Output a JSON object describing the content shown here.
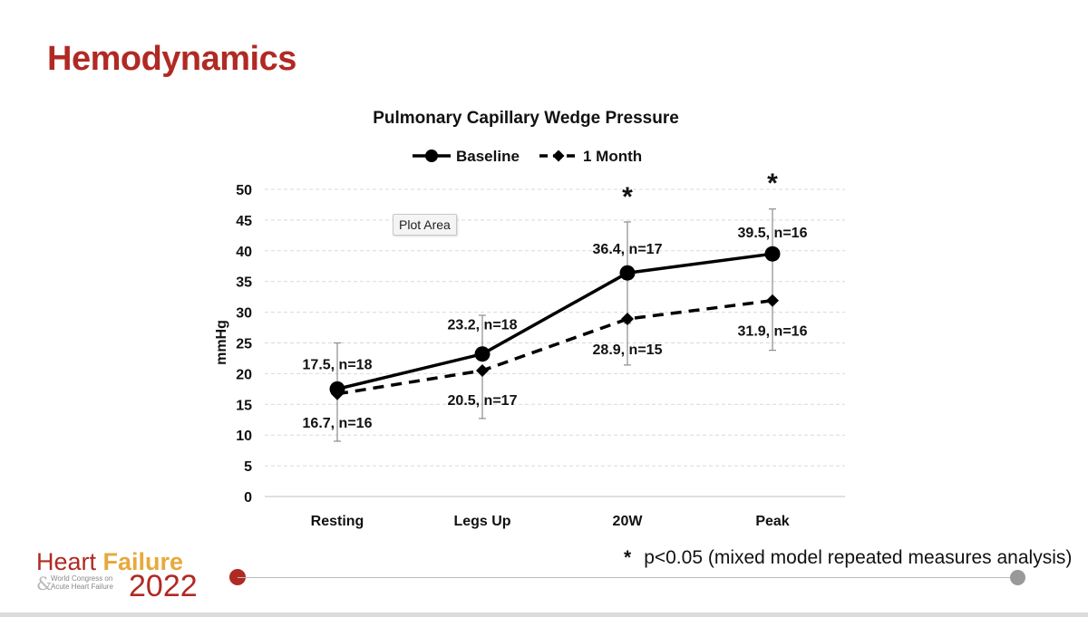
{
  "slide": {
    "title": "Hemodynamics",
    "tooltip": "Plot Area",
    "footnote_star": "*",
    "footnote_text": "p<0.05 (mixed model repeated measures analysis)"
  },
  "logo": {
    "word1": "Heart",
    "word2": "Failure",
    "subtitle_line1": "World Congress on",
    "subtitle_line2": "Acute Heart Failure",
    "year": "2022"
  },
  "colors": {
    "title_red": "#b02a24",
    "logo_gold": "#e8a93b",
    "series": "#000000"
  },
  "chart_data": {
    "type": "line",
    "title": "Pulmonary Capillary Wedge Pressure",
    "xlabel": "",
    "ylabel": "mmHg",
    "ylim": [
      0,
      50
    ],
    "yticks": [
      0,
      5,
      10,
      15,
      20,
      25,
      30,
      35,
      40,
      45,
      50
    ],
    "grid": "horizontal dashed",
    "legend": "top-center",
    "categories": [
      "Resting",
      "Legs Up",
      "20W",
      "Peak"
    ],
    "series": [
      {
        "name": "Baseline",
        "style": "solid",
        "marker": "circle",
        "values": [
          17.5,
          23.2,
          36.4,
          39.5
        ],
        "labels": [
          "17.5, n=18",
          "23.2, n=18",
          "36.4, n=17",
          "39.5, n=16"
        ],
        "error_low": [
          9.0,
          null,
          28.2,
          32.3
        ],
        "error_high": [
          25.0,
          29.5,
          44.7,
          46.8
        ]
      },
      {
        "name": "1 Month",
        "style": "dashed",
        "marker": "diamond",
        "values": [
          16.7,
          20.5,
          28.9,
          31.9
        ],
        "labels": [
          "16.7, n=16",
          "20.5, n=17",
          "28.9, n=15",
          "31.9, n=16"
        ],
        "error_low": [
          null,
          12.7,
          21.4,
          23.8
        ],
        "error_high": [
          null,
          null,
          null,
          null
        ]
      }
    ],
    "significance": [
      "",
      "",
      "*",
      "*"
    ]
  }
}
